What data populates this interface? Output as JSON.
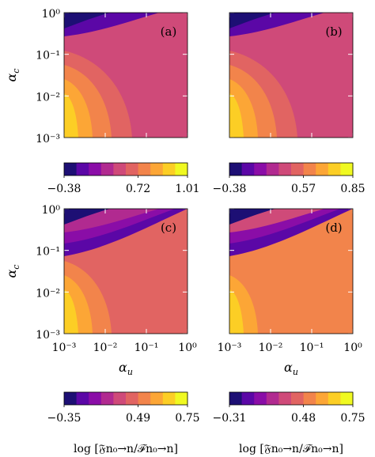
{
  "figure": {
    "y_axis_label": "α",
    "y_axis_label_sub": "c",
    "x_axis_label": "α",
    "x_axis_label_sub": "u",
    "colorbar_label": "log [𝔉n₀→n/ℱn₀→n]"
  },
  "chart_data": [
    {
      "type": "heatmap",
      "panel_label": "(a)",
      "x_scale": "log",
      "y_scale": "log",
      "xlim": [
        0.001,
        1
      ],
      "ylim": [
        0.001,
        1
      ],
      "x_ticks": [
        "10⁻³",
        "10⁻²",
        "10⁻¹",
        "10⁰"
      ],
      "x_ticks_shown": false,
      "y_ticks": [
        "10⁻³",
        "10⁻²",
        "10⁻¹",
        "10⁰"
      ],
      "y_ticks_shown": true,
      "colorbar": {
        "min": -0.38,
        "max": 1.01,
        "ticks": [
          "−0.38",
          "0.72",
          "1.01"
        ],
        "label_shown": false
      },
      "regions": [
        {
          "level": 0,
          "description": "top-left corner band"
        },
        {
          "level": 1,
          "description": "upper band"
        },
        {
          "level": 4,
          "description": "main field"
        },
        {
          "level": 5,
          "description": "arc"
        },
        {
          "level": 6,
          "description": "arc"
        },
        {
          "level": 7,
          "description": "arc"
        },
        {
          "level": 8,
          "description": "bottom-left corner"
        }
      ]
    },
    {
      "type": "heatmap",
      "panel_label": "(b)",
      "x_scale": "log",
      "y_scale": "log",
      "xlim": [
        0.001,
        1
      ],
      "ylim": [
        0.001,
        1
      ],
      "x_ticks": [
        "10⁻³",
        "10⁻²",
        "10⁻¹",
        "10⁰"
      ],
      "x_ticks_shown": false,
      "y_ticks": [
        "10⁻³",
        "10⁻²",
        "10⁻¹",
        "10⁰"
      ],
      "y_ticks_shown": false,
      "colorbar": {
        "min": -0.38,
        "max": 0.85,
        "ticks": [
          "−0.38",
          "0.57",
          "0.85"
        ],
        "label_shown": false
      },
      "regions": [
        {
          "level": 0,
          "description": "top-left corner band"
        },
        {
          "level": 1,
          "description": "upper band"
        },
        {
          "level": 4,
          "description": "main field"
        },
        {
          "level": 5,
          "description": "arc"
        },
        {
          "level": 6,
          "description": "arc"
        },
        {
          "level": 7,
          "description": "arc"
        },
        {
          "level": 8,
          "description": "bottom-left corner"
        }
      ]
    },
    {
      "type": "heatmap",
      "panel_label": "(c)",
      "x_scale": "log",
      "y_scale": "log",
      "xlim": [
        0.001,
        1
      ],
      "ylim": [
        0.001,
        1
      ],
      "x_ticks": [
        "10⁻³",
        "10⁻²",
        "10⁻¹",
        "10⁰"
      ],
      "x_ticks_shown": true,
      "y_ticks": [
        "10⁻³",
        "10⁻²",
        "10⁻¹",
        "10⁰"
      ],
      "y_ticks_shown": true,
      "colorbar": {
        "min": -0.35,
        "max": 0.75,
        "ticks": [
          "−0.35",
          "0.49",
          "0.75"
        ],
        "label_shown": true
      },
      "regions": [
        {
          "level": 0,
          "description": "top-left corner band"
        },
        {
          "level": 1,
          "description": "upper band"
        },
        {
          "level": 2,
          "description": "upper band"
        },
        {
          "level": 3,
          "description": "upper band"
        },
        {
          "level": 5,
          "description": "main field"
        },
        {
          "level": 6,
          "description": "arc"
        },
        {
          "level": 7,
          "description": "arc"
        },
        {
          "level": 8,
          "description": "bottom-left corner"
        }
      ]
    },
    {
      "type": "heatmap",
      "panel_label": "(d)",
      "x_scale": "log",
      "y_scale": "log",
      "xlim": [
        0.001,
        1
      ],
      "ylim": [
        0.001,
        1
      ],
      "x_ticks": [
        "10⁻³",
        "10⁻²",
        "10⁻¹",
        "10⁰"
      ],
      "x_ticks_shown": true,
      "y_ticks": [
        "10⁻³",
        "10⁻²",
        "10⁻¹",
        "10⁰"
      ],
      "y_ticks_shown": false,
      "colorbar": {
        "min": -0.31,
        "max": 0.75,
        "ticks": [
          "−0.31",
          "0.48",
          "0.75"
        ],
        "label_shown": true
      },
      "regions": [
        {
          "level": 0,
          "description": "top-left corner band"
        },
        {
          "level": 1,
          "description": "upper band"
        },
        {
          "level": 2,
          "description": "upper band"
        },
        {
          "level": 4,
          "description": "upper band"
        },
        {
          "level": 6,
          "description": "main field"
        },
        {
          "level": 7,
          "description": "arc"
        },
        {
          "level": 8,
          "description": "bottom-left corner"
        }
      ]
    }
  ],
  "colormap": [
    "#1d0f74",
    "#5b07a6",
    "#8a0da7",
    "#b12a90",
    "#cf4a79",
    "#e16462",
    "#f2844b",
    "#fca636",
    "#fcce25",
    "#f0f921"
  ]
}
